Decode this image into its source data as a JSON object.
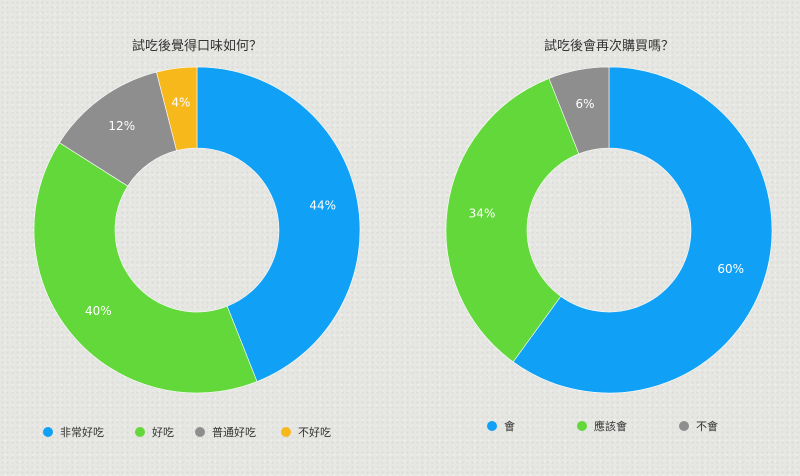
{
  "chart_data": [
    {
      "type": "pie",
      "donut": true,
      "title": "試吃後覺得口味如何？",
      "legend_position": "bottom",
      "categories": [
        "非常好吃",
        "好吃",
        "普通好吃",
        "不好吃"
      ],
      "values": [
        44,
        40,
        12,
        4
      ],
      "labels": [
        "44%",
        "40%",
        "12%",
        "4%"
      ],
      "colors": [
        "#10a0f5",
        "#62d83a",
        "#8e8e8e",
        "#f7b81b"
      ]
    },
    {
      "type": "pie",
      "donut": true,
      "title": "試吃後會再次購買嗎？",
      "legend_position": "bottom",
      "categories": [
        "會",
        "應該會",
        "不會"
      ],
      "values": [
        60,
        34,
        6
      ],
      "labels": [
        "60%",
        "34%",
        "6%"
      ],
      "colors": [
        "#10a0f5",
        "#62d83a",
        "#8e8e8e"
      ]
    }
  ]
}
